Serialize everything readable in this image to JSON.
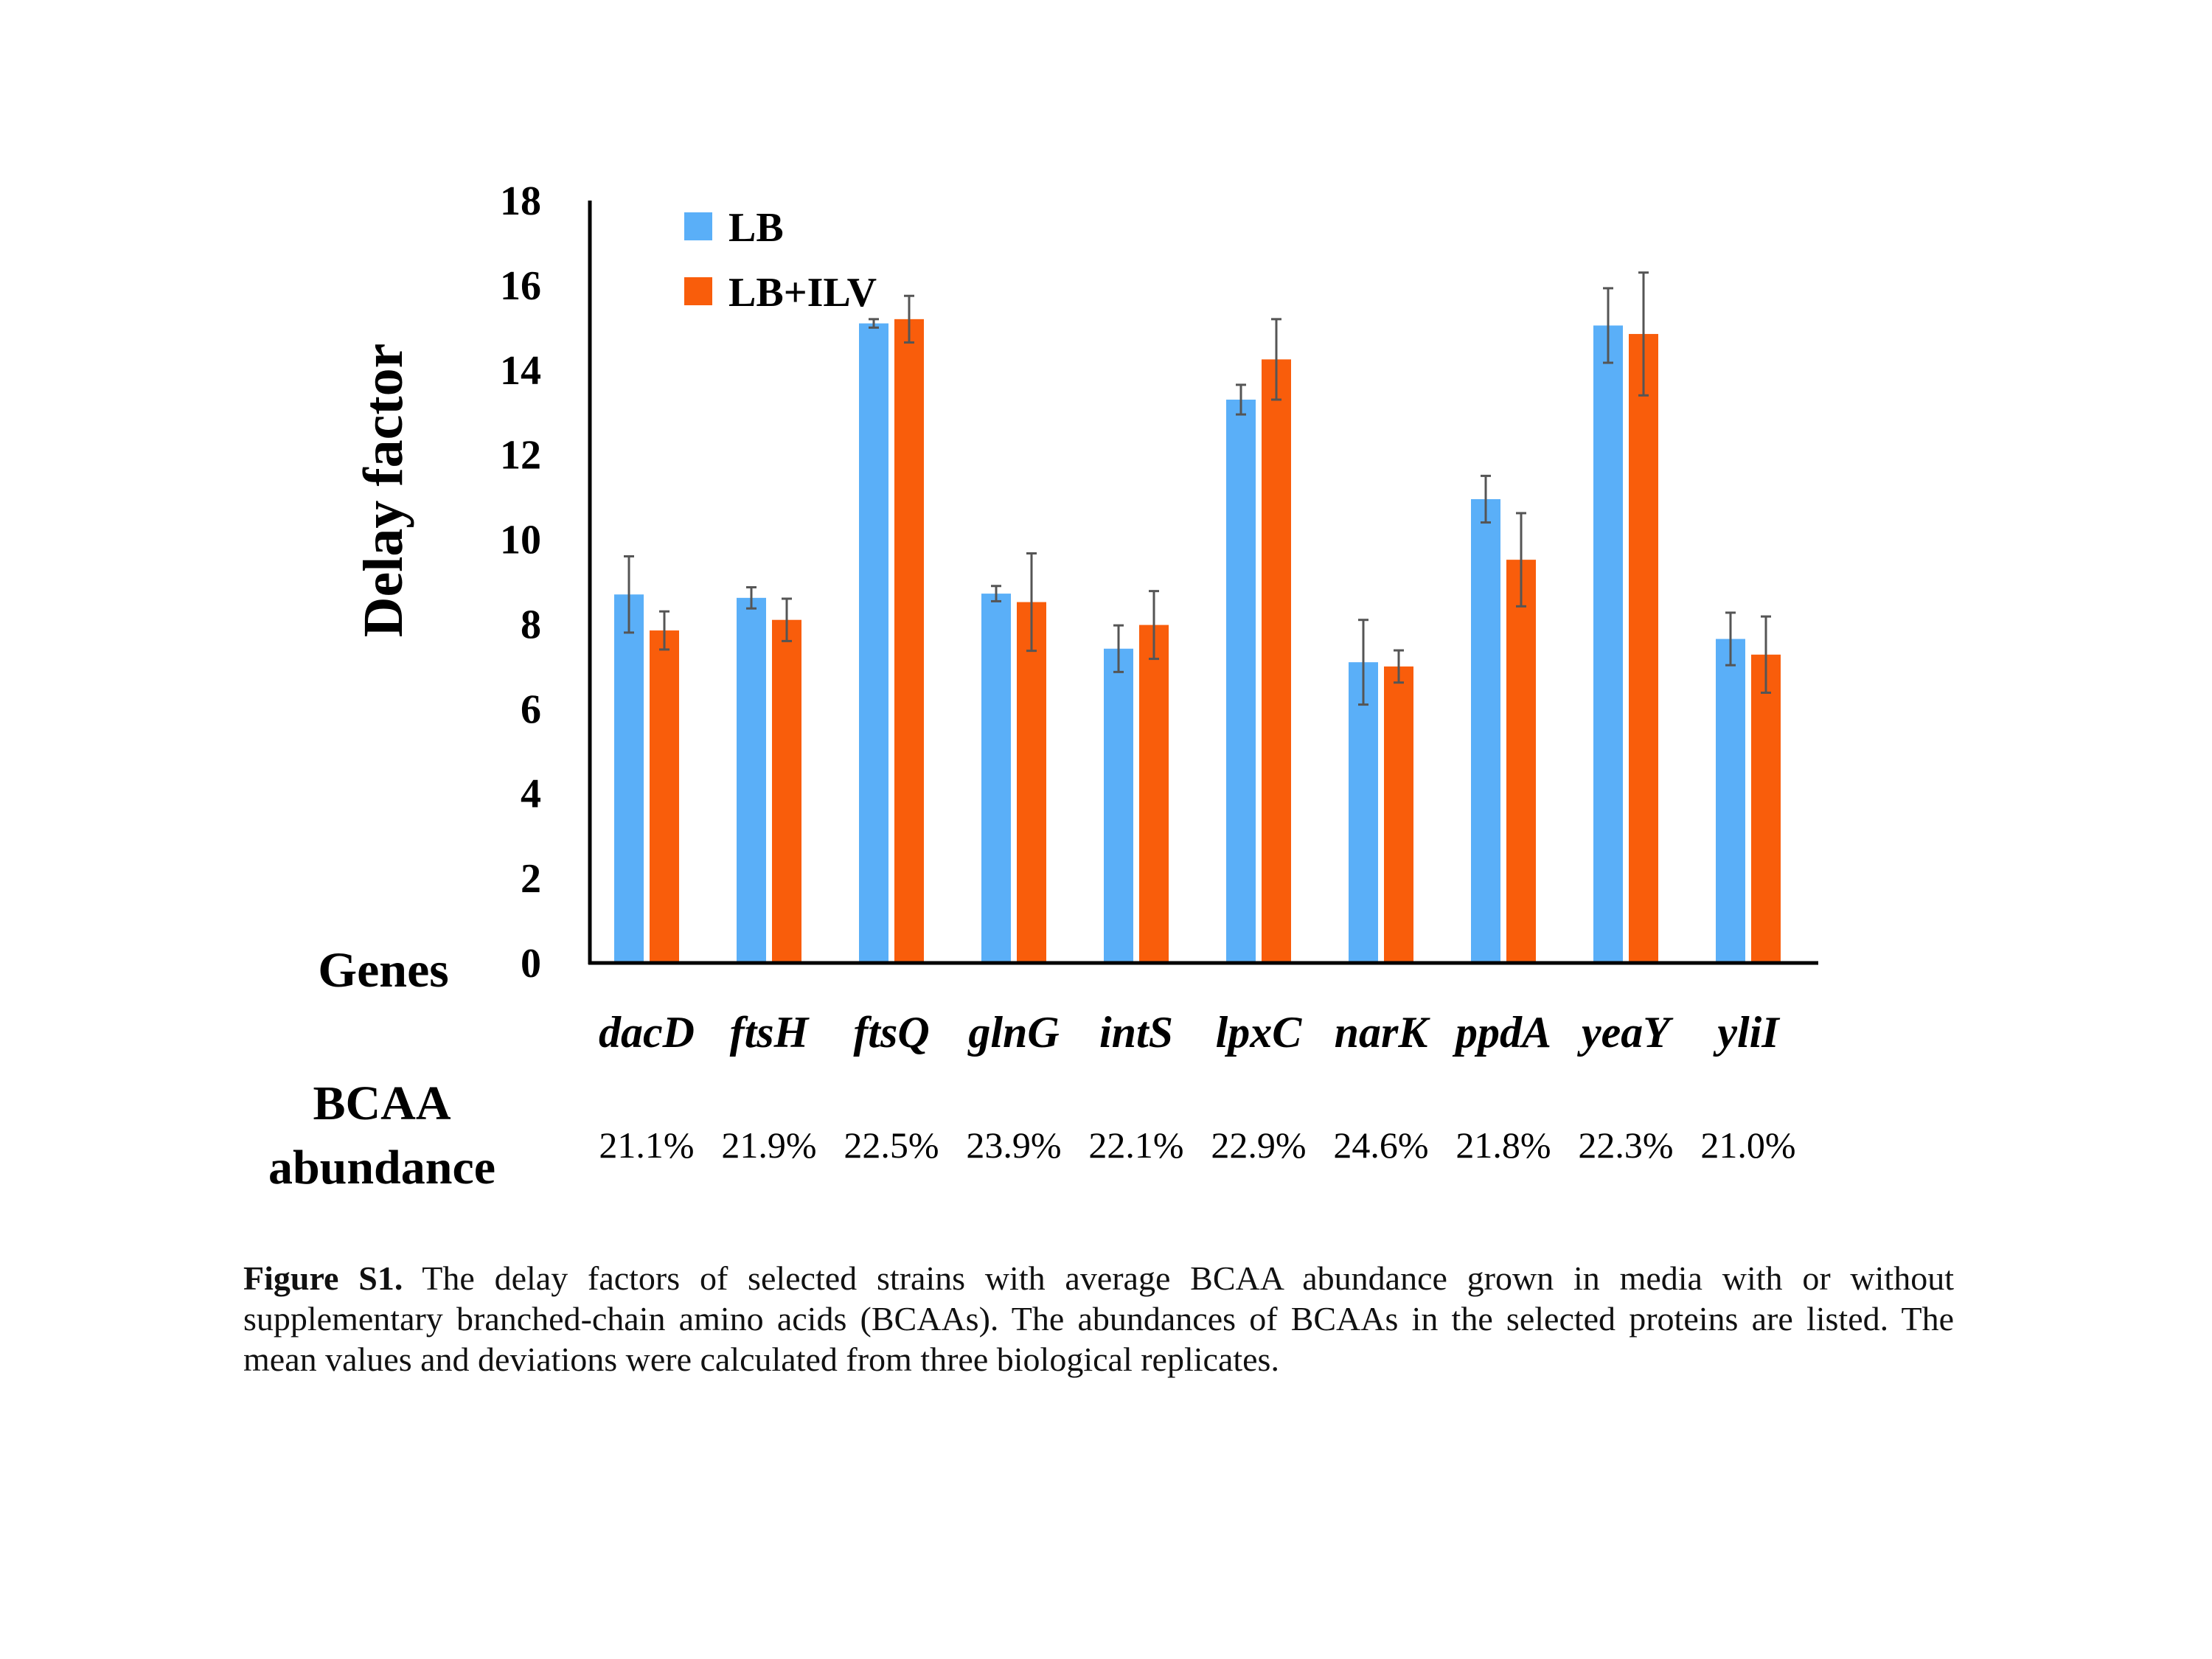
{
  "chart_data": {
    "type": "bar",
    "ylabel": "Delay factor",
    "xlabel": "Genes",
    "ylim": [
      0,
      18
    ],
    "yticks": [
      "0",
      "2",
      "4",
      "6",
      "8",
      "10",
      "12",
      "14",
      "16",
      "18"
    ],
    "categories": [
      "dacD",
      "ftsH",
      "ftsQ",
      "glnG",
      "intS",
      "lpxC",
      "narK",
      "ppdA",
      "yeaY",
      "yliI"
    ],
    "series": [
      {
        "name": "LB",
        "color": "#5aaff8",
        "values": [
          8.7,
          8.62,
          15.1,
          8.72,
          7.42,
          13.3,
          7.1,
          10.95,
          15.05,
          7.65
        ],
        "errors": [
          0.9,
          0.25,
          0.1,
          0.18,
          0.55,
          0.35,
          1.0,
          0.55,
          0.88,
          0.62
        ]
      },
      {
        "name": "LB+ILV",
        "color": "#f95d0b",
        "values": [
          7.85,
          8.1,
          15.2,
          8.52,
          7.98,
          14.25,
          7.0,
          9.52,
          14.85,
          7.28
        ],
        "errors": [
          0.45,
          0.5,
          0.55,
          1.15,
          0.8,
          0.95,
          0.38,
          1.1,
          1.45,
          0.9
        ]
      }
    ],
    "row_label_1": "BCAA",
    "row_label_2": "abundance",
    "bcaa_abundance": [
      "21.1%",
      "21.9%",
      "22.5%",
      "23.9%",
      "22.1%",
      "22.9%",
      "24.6%",
      "21.8%",
      "22.3%",
      "21.0%"
    ],
    "legend_position": "top-left",
    "grid": false
  },
  "caption": {
    "label": "Figure S1.",
    "text": " The delay factors of selected strains with average BCAA abundance grown in media with or without supplementary branched-chain amino acids (BCAAs). The abundances of BCAAs in the selected proteins are listed. The mean values and deviations were calculated from three biological replicates."
  }
}
